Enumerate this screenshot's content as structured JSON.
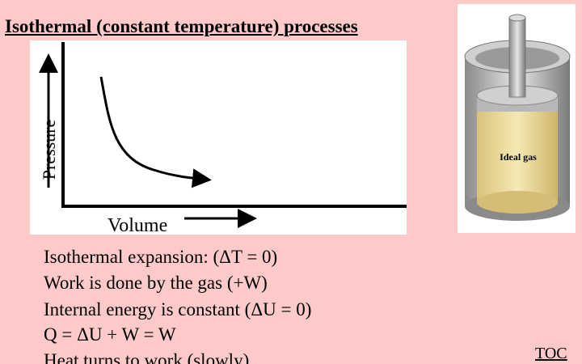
{
  "title": "Isothermal (constant temperature) processes",
  "diagram": {
    "y_axis_label": "Pressure",
    "x_axis_label": "Volume",
    "figure_label": "Ideal gas"
  },
  "body": {
    "lines": [
      "Isothermal expansion: (ΔT = 0)",
      "Work is done by the gas  (+W)",
      "Internal energy is constant (ΔU = 0)",
      "Q = ΔU + W = W",
      "Heat turns to work (slowly)"
    ]
  },
  "nav": {
    "toc": "TOC"
  }
}
